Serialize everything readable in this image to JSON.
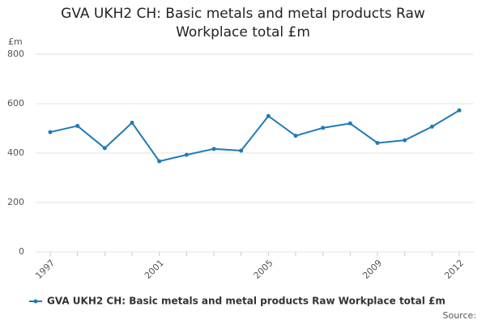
{
  "chart_data": {
    "type": "line",
    "title": "GVA UKH2 CH: Basic metals and metal products Raw Workplace total £m",
    "y_label": "£m",
    "categories": [
      "1997",
      null,
      null,
      null,
      "2001",
      null,
      null,
      null,
      "2005",
      null,
      null,
      null,
      "2009",
      null,
      null,
      "2012"
    ],
    "series": [
      {
        "name": "GVA UKH2 CH: Basic metals and metal products Raw Workplace total £m",
        "color": "#1f7bb6",
        "values": [
          485,
          510,
          420,
          523,
          367,
          393,
          417,
          410,
          550,
          470,
          502,
          520,
          441,
          452,
          507,
          573
        ]
      }
    ],
    "ylim": [
      0,
      800
    ],
    "yticks": [
      0,
      200,
      400,
      600,
      800
    ],
    "grid": true,
    "legend": "bottom",
    "source": "Source:"
  }
}
